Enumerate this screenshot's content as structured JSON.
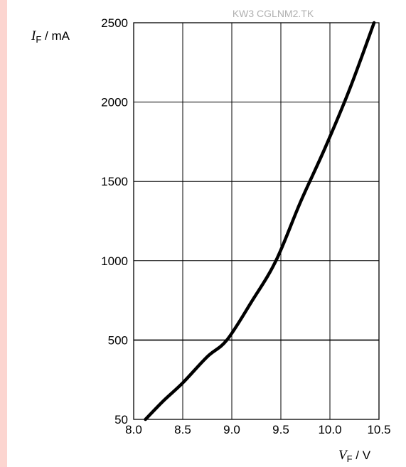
{
  "watermark": "KW3 CGLNM2.TK",
  "chart_data": {
    "type": "line",
    "y_label": {
      "symbol": "I",
      "subscript": "F",
      "unit": " / mA"
    },
    "x_label": {
      "symbol": "V",
      "subscript": "F",
      "unit": " / V"
    },
    "xlim": [
      8.0,
      10.5
    ],
    "ylim": [
      50,
      2500
    ],
    "x_ticks": [
      "8.0",
      "8.5",
      "9.0",
      "9.5",
      "10.0",
      "10.5"
    ],
    "x_tick_values": [
      8.0,
      8.5,
      9.0,
      9.5,
      10.0,
      10.5
    ],
    "y_ticks": [
      "50",
      "500",
      "1000",
      "1500",
      "2000",
      "2500"
    ],
    "y_tick_values": [
      50,
      500,
      1000,
      1500,
      2000,
      2500
    ],
    "grid": true,
    "series": [
      {
        "x": [
          8.12,
          8.3,
          8.5,
          8.75,
          8.95,
          9.2,
          9.45,
          9.7,
          9.95,
          10.2,
          10.45
        ],
        "y": [
          50,
          115,
          230,
          395,
          500,
          740,
          1000,
          1370,
          1710,
          2080,
          2500
        ]
      }
    ]
  }
}
